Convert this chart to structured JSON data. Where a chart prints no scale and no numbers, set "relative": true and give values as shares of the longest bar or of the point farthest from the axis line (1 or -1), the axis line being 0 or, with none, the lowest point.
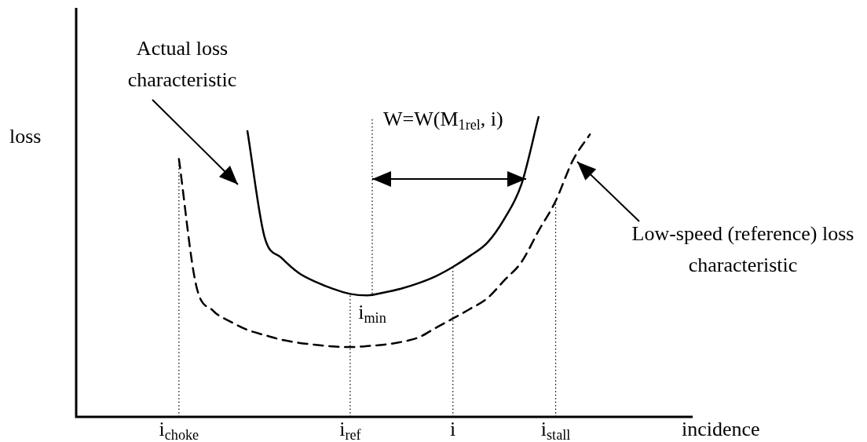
{
  "chart_data": {
    "type": "line",
    "relative": true,
    "legend": false,
    "marker": "none",
    "xlabel": "incidence",
    "ylabel": "loss",
    "categories": [
      null,
      null,
      null,
      null,
      null,
      null,
      "i$_{choke}$",
      null,
      null,
      null,
      null,
      null,
      null,
      null,
      null,
      null,
      "i$_{ref}$",
      null,
      null,
      null,
      null,
      null,
      "i",
      null,
      null,
      null,
      null,
      null,
      "i$_{stall}$",
      null,
      null,
      null,
      null,
      null,
      null,
      null,
      null
    ],
    "series": [
      {
        "color": "#000000",
        "line_style": "solid",
        "values": [
          null,
          null,
          null,
          null,
          null,
          null,
          null,
          null,
          null,
          null,
          0.953,
          0.6,
          0.53,
          0.48,
          0.45,
          0.427,
          0.41,
          0.405,
          0.415,
          0.428,
          0.446,
          0.469,
          0.5,
          0.537,
          0.58,
          0.66,
          0.775,
          1.0,
          null,
          null,
          null,
          null,
          null,
          null,
          null,
          null,
          null
        ]
      },
      {
        "color": "#000000",
        "line_style": "dashed",
        "values": [
          null,
          null,
          null,
          null,
          null,
          null,
          0.86,
          0.44,
          0.354,
          0.318,
          0.29,
          0.273,
          0.257,
          0.247,
          0.24,
          0.235,
          0.233,
          0.236,
          0.241,
          0.25,
          0.265,
          0.297,
          0.328,
          0.36,
          0.395,
          0.455,
          0.516,
          0.62,
          0.72,
          0.855,
          0.942,
          null,
          null,
          null,
          null,
          null,
          null
        ]
      }
    ],
    "ref_lines": [
      {
        "axis": "x",
        "value": "i$_{choke}$",
        "line_style": "dotted"
      },
      {
        "axis": "x",
        "value": "i$_{ref}$",
        "line_style": "dotted"
      },
      {
        "axis": "x",
        "value": "i",
        "line_style": "dotted"
      },
      {
        "axis": "x",
        "value": "i$_{stall}$",
        "line_style": "dotted"
      }
    ],
    "annotations": [
      "Actual loss characteristic",
      "Low-speed (reference) loss characteristic",
      "W=W(M$_{1rel}$, i)",
      "i$_{min}$"
    ]
  }
}
